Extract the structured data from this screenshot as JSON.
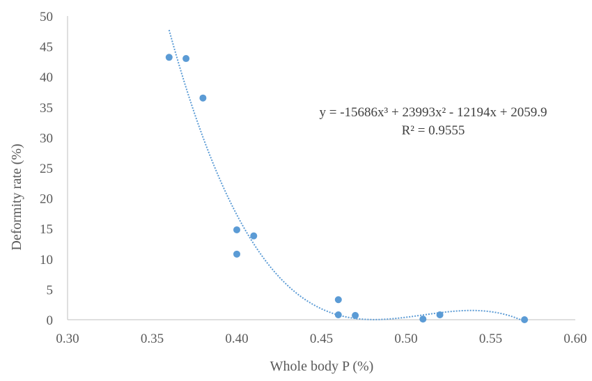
{
  "chart_data": {
    "type": "scatter",
    "xlabel": "Whole body P (%)",
    "ylabel": "Deformity rate (%)",
    "xlim": [
      0.3,
      0.6
    ],
    "ylim": [
      0,
      50
    ],
    "x_ticks": [
      "0.30",
      "0.35",
      "0.40",
      "0.45",
      "0.50",
      "0.55",
      "0.60"
    ],
    "y_ticks": [
      "0",
      "5",
      "10",
      "15",
      "20",
      "25",
      "30",
      "35",
      "40",
      "45",
      "50"
    ],
    "grid": false,
    "marker_color": "#5B9BD5",
    "trendline_color": "#5B9BD5",
    "points": [
      {
        "x": 0.36,
        "y": 43.2
      },
      {
        "x": 0.37,
        "y": 43.0
      },
      {
        "x": 0.38,
        "y": 36.5
      },
      {
        "x": 0.4,
        "y": 14.8
      },
      {
        "x": 0.4,
        "y": 10.8
      },
      {
        "x": 0.41,
        "y": 13.8
      },
      {
        "x": 0.46,
        "y": 3.3
      },
      {
        "x": 0.46,
        "y": 0.8
      },
      {
        "x": 0.47,
        "y": 0.7
      },
      {
        "x": 0.51,
        "y": 0.1
      },
      {
        "x": 0.52,
        "y": 0.8
      },
      {
        "x": 0.57,
        "y": 0.0
      }
    ],
    "trendline": {
      "kind": "polynomial",
      "order": 3,
      "x_range": [
        0.36,
        0.57
      ],
      "equation": "y = -15686x³ + 23993x² - 12194x + 2059.9",
      "r_squared": "R² = 0.9555"
    }
  }
}
